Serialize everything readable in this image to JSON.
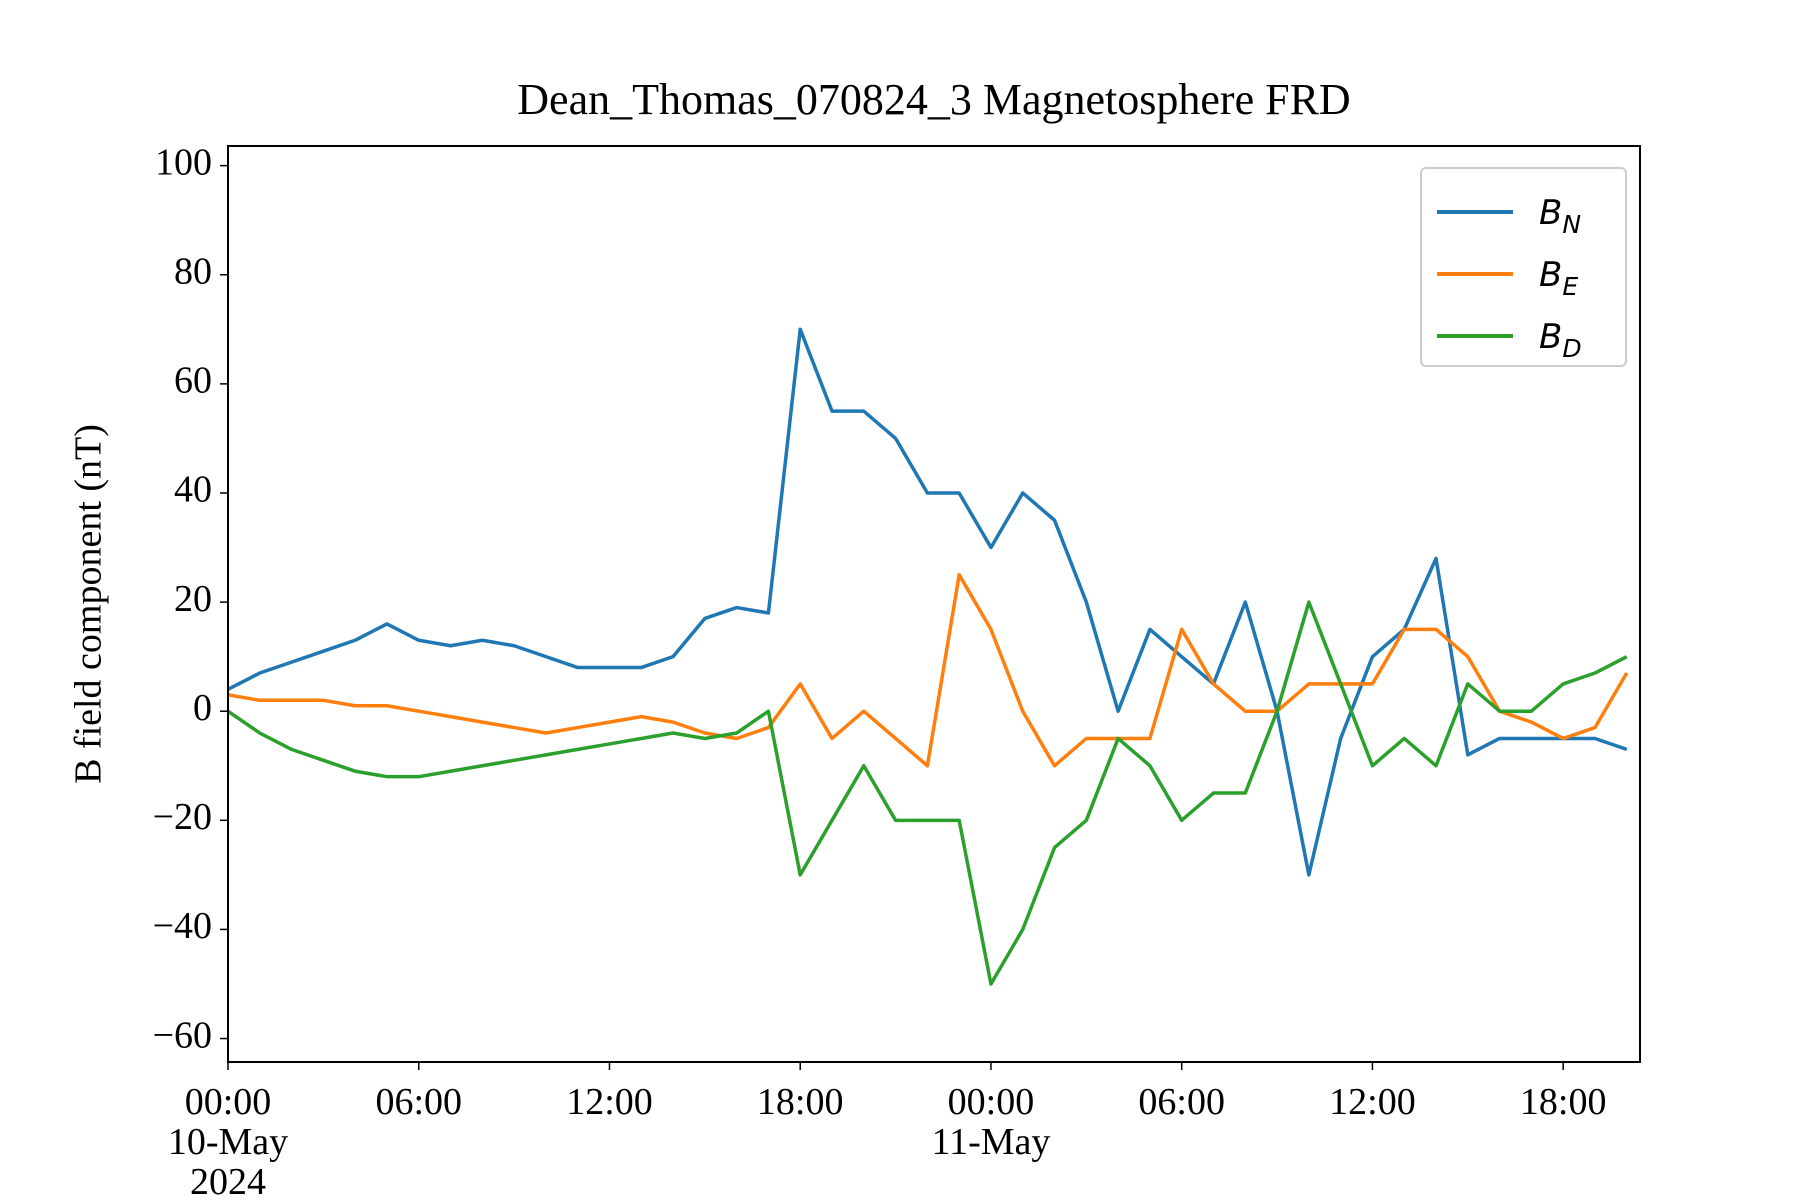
{
  "chart_data": {
    "type": "line",
    "title": "Dean_Thomas_070824_3 Magnetosphere FRD",
    "y_label": "B field component (nT)",
    "x": [
      "2024-05-10T00:00",
      "2024-05-10T01:00",
      "2024-05-10T02:00",
      "2024-05-10T03:00",
      "2024-05-10T04:00",
      "2024-05-10T05:00",
      "2024-05-10T06:00",
      "2024-05-10T07:00",
      "2024-05-10T08:00",
      "2024-05-10T09:00",
      "2024-05-10T10:00",
      "2024-05-10T11:00",
      "2024-05-10T12:00",
      "2024-05-10T13:00",
      "2024-05-10T14:00",
      "2024-05-10T15:00",
      "2024-05-10T16:00",
      "2024-05-10T17:00",
      "2024-05-10T18:00",
      "2024-05-10T19:00",
      "2024-05-10T20:00",
      "2024-05-10T21:00",
      "2024-05-10T22:00",
      "2024-05-10T23:00",
      "2024-05-11T00:00",
      "2024-05-11T01:00",
      "2024-05-11T02:00",
      "2024-05-11T03:00",
      "2024-05-11T04:00",
      "2024-05-11T05:00",
      "2024-05-11T06:00",
      "2024-05-11T07:00",
      "2024-05-11T08:00",
      "2024-05-11T09:00",
      "2024-05-11T10:00",
      "2024-05-11T11:00",
      "2024-05-11T12:00",
      "2024-05-11T13:00",
      "2024-05-11T14:00",
      "2024-05-11T15:00",
      "2024-05-11T16:00",
      "2024-05-11T17:00",
      "2024-05-11T18:00",
      "2024-05-11T19:00",
      "2024-05-11T20:00"
    ],
    "series": [
      {
        "name": "B_N",
        "color": "#1f77b4",
        "values": [
          4,
          7,
          9,
          11,
          13,
          16,
          13,
          12,
          13,
          12,
          10,
          8,
          8,
          8,
          10,
          17,
          19,
          18,
          70,
          55,
          55,
          50,
          40,
          40,
          30,
          40,
          35,
          20,
          0,
          15,
          10,
          5,
          20,
          0,
          -30,
          -5,
          10,
          15,
          28,
          -8,
          -5,
          -5,
          -5,
          -5,
          -7
        ]
      },
      {
        "name": "B_E",
        "color": "#ff7f0e",
        "values": [
          3,
          2,
          2,
          2,
          1,
          1,
          0,
          -1,
          -2,
          -3,
          -4,
          -3,
          -2,
          -1,
          -2,
          -4,
          -5,
          -3,
          5,
          -5,
          0,
          -5,
          -10,
          25,
          15,
          0,
          -10,
          -5,
          -5,
          -5,
          15,
          5,
          0,
          0,
          5,
          5,
          5,
          15,
          15,
          10,
          0,
          -2,
          -5,
          -3,
          7
        ]
      },
      {
        "name": "B_D",
        "color": "#2ca02c",
        "values": [
          0,
          -4,
          -7,
          -9,
          -11,
          -12,
          -12,
          -11,
          -10,
          -9,
          -8,
          -7,
          -6,
          -5,
          -4,
          -5,
          -4,
          0,
          -30,
          -20,
          -10,
          -20,
          -20,
          -20,
          -50,
          -40,
          -25,
          -20,
          -5,
          -10,
          -20,
          -15,
          -15,
          0,
          20,
          5,
          -10,
          -5,
          -10,
          5,
          0,
          0,
          5,
          7,
          10
        ]
      }
    ],
    "xlim": [
      "2024-05-10T00:00",
      "2024-05-11T20:25"
    ],
    "xticks": [
      {
        "value": "2024-05-10T00:00",
        "label": "00:00\n10-May\n2024"
      },
      {
        "value": "2024-05-10T06:00",
        "label": "06:00"
      },
      {
        "value": "2024-05-10T12:00",
        "label": "12:00"
      },
      {
        "value": "2024-05-10T18:00",
        "label": "18:00"
      },
      {
        "value": "2024-05-11T00:00",
        "label": "00:00\n11-May"
      },
      {
        "value": "2024-05-11T06:00",
        "label": "06:00"
      },
      {
        "value": "2024-05-11T12:00",
        "label": "12:00"
      },
      {
        "value": "2024-05-11T18:00",
        "label": "18:00"
      }
    ],
    "ylim": [
      -64.3,
      103.6
    ],
    "yticks": [
      {
        "value": -60,
        "label": "−60"
      },
      {
        "value": -40,
        "label": "−40"
      },
      {
        "value": -20,
        "label": "−20"
      },
      0,
      20,
      40,
      60,
      80,
      100
    ],
    "legend": "upper right"
  }
}
